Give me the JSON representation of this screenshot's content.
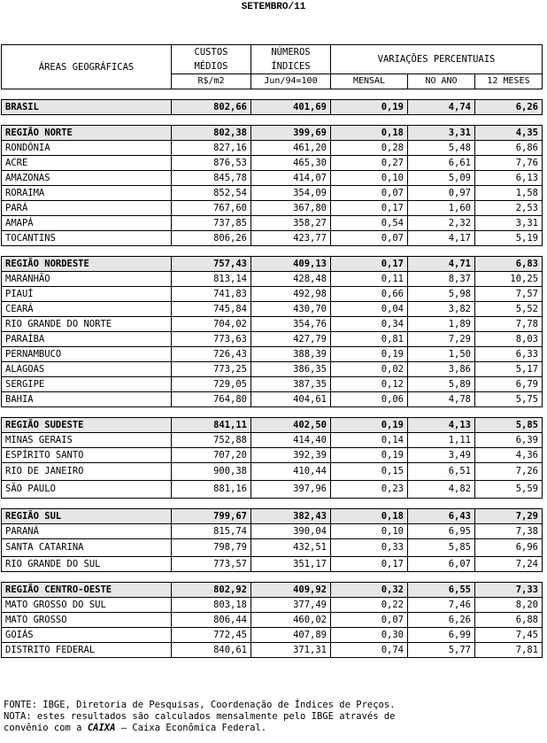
{
  "title": "SETEMBRO/11",
  "header": {
    "area": "ÁREAS GEOGRÁFICAS",
    "custos_line1": "CUSTOS",
    "custos_line2": "MÉDIOS",
    "custos_unit": "R$/m2",
    "numeros_line1": "NÚMEROS",
    "numeros_line2": "ÍNDICES",
    "numeros_unit": "Jun/94=100",
    "variacoes": "VARIAÇÕES PERCENTUAIS",
    "mensal": "MENSAL",
    "no_ano": "NO ANO",
    "doze_meses": "12 MESES"
  },
  "groups": [
    {
      "rows": [
        {
          "name": "BRASIL",
          "custo": "802,66",
          "indice": "401,69",
          "mensal": "0,19",
          "ano": "4,74",
          "meses12": "6,26",
          "type": "region"
        }
      ]
    },
    {
      "rows": [
        {
          "name": "REGIÃO NORTE",
          "custo": "802,38",
          "indice": "399,69",
          "mensal": "0,18",
          "ano": "3,31",
          "meses12": "4,35",
          "type": "region"
        },
        {
          "name": "RONDÔNIA",
          "custo": "827,16",
          "indice": "461,20",
          "mensal": "0,28",
          "ano": "5,48",
          "meses12": "6,86",
          "type": "state"
        },
        {
          "name": "ACRE",
          "custo": "876,53",
          "indice": "465,30",
          "mensal": "0,27",
          "ano": "6,61",
          "meses12": "7,76",
          "type": "state"
        },
        {
          "name": "AMAZONAS",
          "custo": "845,78",
          "indice": "414,07",
          "mensal": "0,10",
          "ano": "5,09",
          "meses12": "6,13",
          "type": "state"
        },
        {
          "name": "RORAIMA",
          "custo": "852,54",
          "indice": "354,09",
          "mensal": "0,07",
          "ano": "0,97",
          "meses12": "1,58",
          "type": "state"
        },
        {
          "name": "PARÁ",
          "custo": "767,60",
          "indice": "367,80",
          "mensal": "0,17",
          "ano": "1,60",
          "meses12": "2,53",
          "type": "state"
        },
        {
          "name": "AMAPÁ",
          "custo": "737,85",
          "indice": "358,27",
          "mensal": "0,54",
          "ano": "2,32",
          "meses12": "3,31",
          "type": "state"
        },
        {
          "name": "TOCANTINS",
          "custo": "806,26",
          "indice": "423,77",
          "mensal": "0,07",
          "ano": "4,17",
          "meses12": "5,19",
          "type": "state"
        }
      ]
    },
    {
      "rows": [
        {
          "name": "REGIÃO NORDESTE",
          "custo": "757,43",
          "indice": "409,13",
          "mensal": "0,17",
          "ano": "4,71",
          "meses12": "6,83",
          "type": "region"
        },
        {
          "name": "MARANHÃO",
          "custo": "813,14",
          "indice": "428,48",
          "mensal": "0,11",
          "ano": "8,37",
          "meses12": "10,25",
          "type": "state"
        },
        {
          "name": "PIAUÍ",
          "custo": "741,83",
          "indice": "492,98",
          "mensal": "0,66",
          "ano": "5,98",
          "meses12": "7,57",
          "type": "state"
        },
        {
          "name": "CEARÁ",
          "custo": "745,84",
          "indice": "430,70",
          "mensal": "0,04",
          "ano": "3,82",
          "meses12": "5,52",
          "type": "state"
        },
        {
          "name": "RIO GRANDE DO NORTE",
          "custo": "704,02",
          "indice": "354,76",
          "mensal": "0,34",
          "ano": "1,89",
          "meses12": "7,78",
          "type": "state"
        },
        {
          "name": "PARAÍBA",
          "custo": "773,63",
          "indice": "427,79",
          "mensal": "0,81",
          "ano": "7,29",
          "meses12": "8,03",
          "type": "state"
        },
        {
          "name": "PERNAMBUCO",
          "custo": "726,43",
          "indice": "388,39",
          "mensal": "0,19",
          "ano": "1,50",
          "meses12": "6,33",
          "type": "state"
        },
        {
          "name": "ALAGOAS",
          "custo": "773,25",
          "indice": "386,35",
          "mensal": "0,02",
          "ano": "3,86",
          "meses12": "5,17",
          "type": "state"
        },
        {
          "name": "SERGIPE",
          "custo": "729,05",
          "indice": "387,35",
          "mensal": "0,12",
          "ano": "5,89",
          "meses12": "6,79",
          "type": "state"
        },
        {
          "name": "BAHIA",
          "custo": "764,80",
          "indice": "404,61",
          "mensal": "0,06",
          "ano": "4,78",
          "meses12": "5,75",
          "type": "state"
        }
      ]
    },
    {
      "rows": [
        {
          "name": "REGIÃO SUDESTE",
          "custo": "841,11",
          "indice": "402,50",
          "mensal": "0,19",
          "ano": "4,13",
          "meses12": "5,85",
          "type": "region"
        },
        {
          "name": "MINAS GERAIS",
          "custo": "752,88",
          "indice": "414,40",
          "mensal": "0,14",
          "ano": "1,11",
          "meses12": "6,39",
          "type": "state"
        },
        {
          "name": "ESPÍRITO SANTO",
          "custo": "707,20",
          "indice": "392,39",
          "mensal": "0,19",
          "ano": "3,49",
          "meses12": "4,36",
          "type": "state"
        },
        {
          "name": "RIO DE JANEIRO",
          "custo": "900,38",
          "indice": "410,44",
          "mensal": "0,15",
          "ano": "6,51",
          "meses12": "7,26",
          "type": "state",
          "tall": true
        },
        {
          "name": "SÃO PAULO",
          "custo": "881,16",
          "indice": "397,96",
          "mensal": "0,23",
          "ano": "4,82",
          "meses12": "5,59",
          "type": "state",
          "tall": true
        }
      ]
    },
    {
      "rows": [
        {
          "name": "REGIÃO SUL",
          "custo": "799,67",
          "indice": "382,43",
          "mensal": "0,18",
          "ano": "6,43",
          "meses12": "7,29",
          "type": "region"
        },
        {
          "name": "PARANÁ",
          "custo": "815,74",
          "indice": "390,04",
          "mensal": "0,10",
          "ano": "6,95",
          "meses12": "7,38",
          "type": "state"
        },
        {
          "name": "SANTA CATARINA",
          "custo": "798,79",
          "indice": "432,51",
          "mensal": "0,33",
          "ano": "5,85",
          "meses12": "6,96",
          "type": "state",
          "tall": true
        },
        {
          "name": "RIO GRANDE DO SUL",
          "custo": "773,57",
          "indice": "351,17",
          "mensal": "0,17",
          "ano": "6,07",
          "meses12": "7,24",
          "type": "state"
        }
      ]
    },
    {
      "rows": [
        {
          "name": "REGIÃO CENTRO-OESTE",
          "custo": "802,92",
          "indice": "409,92",
          "mensal": "0,32",
          "ano": "6,55",
          "meses12": "7,33",
          "type": "region"
        },
        {
          "name": "MATO GROSSO DO SUL",
          "custo": "803,18",
          "indice": "377,49",
          "mensal": "0,22",
          "ano": "7,46",
          "meses12": "8,20",
          "type": "state"
        },
        {
          "name": "MATO GROSSO",
          "custo": "806,44",
          "indice": "460,02",
          "mensal": "0,07",
          "ano": "6,26",
          "meses12": "6,88",
          "type": "state"
        },
        {
          "name": "GOIÁS",
          "custo": "772,45",
          "indice": "407,89",
          "mensal": "0,30",
          "ano": "6,99",
          "meses12": "7,45",
          "type": "state"
        },
        {
          "name": "DISTRITO FEDERAL",
          "custo": "840,61",
          "indice": "371,31",
          "mensal": "0,74",
          "ano": "5,77",
          "meses12": "7,81",
          "type": "state"
        }
      ]
    }
  ],
  "footer": {
    "fonte": "FONTE: IBGE, Diretoria de Pesquisas, Coordenação de Índices de Preços.",
    "nota_prefix": "NOTA: estes resultados são calculados mensalmente pelo IBGE através de",
    "nota_line2_prefix": "convênio com a ",
    "nota_caixa": "CAIXA",
    "nota_line2_suffix": " – Caixa Econômica Federal."
  },
  "colors": {
    "region_bg": "#e6e6e6"
  }
}
